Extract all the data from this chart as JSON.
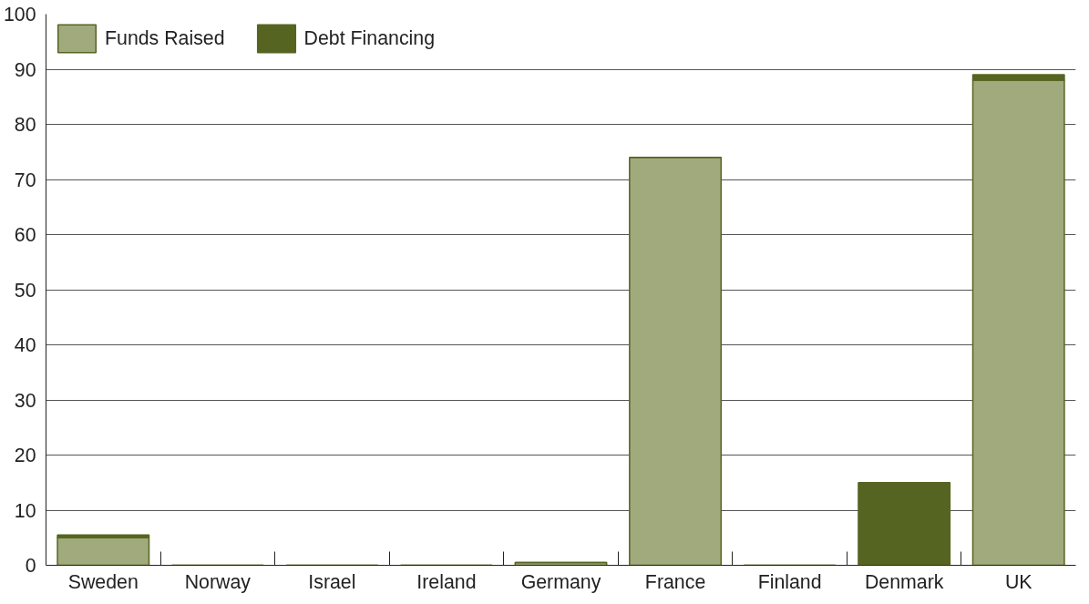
{
  "chart_data": {
    "type": "bar",
    "stacked": true,
    "categories": [
      "Sweden",
      "Norway",
      "Israel",
      "Ireland",
      "Germany",
      "France",
      "Finland",
      "Denmark",
      "UK"
    ],
    "series": [
      {
        "name": "Funds Raised",
        "color": "#a0aa7c",
        "values": [
          5,
          0,
          0,
          0,
          0.5,
          74,
          0,
          0,
          88
        ]
      },
      {
        "name": "Debt Financing",
        "color": "#566422",
        "values": [
          0.5,
          0,
          0,
          0,
          0,
          0,
          0,
          15,
          1
        ]
      }
    ],
    "ylim": [
      0,
      100
    ],
    "yticks": [
      0,
      10,
      20,
      30,
      40,
      50,
      60,
      70,
      80,
      90,
      100
    ],
    "grid": "y",
    "legend": "top left"
  }
}
